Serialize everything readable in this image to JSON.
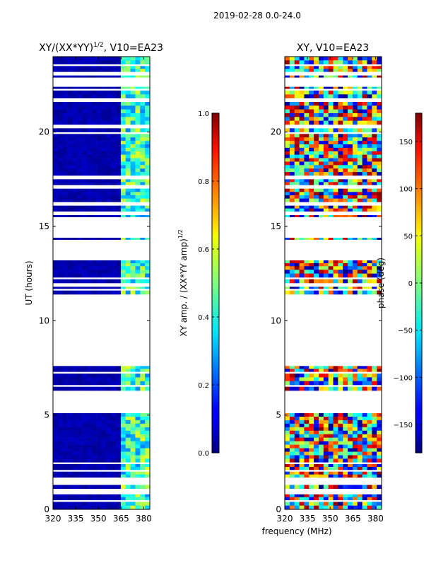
{
  "figure": {
    "suptitle": "2019-02-28 0.0-24.0",
    "xlabel": "frequency (MHz)"
  },
  "chart_data": [
    {
      "type": "heatmap",
      "title_main": "XY/(XX*YY)",
      "title_sup": "1/2",
      "title_tail": ", V10=EA23",
      "xlabel": "",
      "ylabel": "UT (hours)",
      "xlim": [
        320,
        384
      ],
      "ylim": [
        0,
        24
      ],
      "xticks": [
        320,
        335,
        350,
        365,
        380
      ],
      "xtick_labels": [
        "320",
        "335",
        "350",
        "365",
        "380"
      ],
      "yticks": [
        0,
        5,
        10,
        15,
        20
      ],
      "ytick_labels": [
        "0",
        "5",
        "10",
        "15",
        "20"
      ],
      "colorbar": {
        "label_main": "XY amp. / (XX*YY amp)",
        "label_sup": "1/2",
        "range": [
          0.0,
          1.0
        ],
        "ticks": [
          0.0,
          0.2,
          0.4,
          0.6,
          0.8,
          1.0
        ],
        "tick_labels": [
          "0.0",
          "0.2",
          "0.4",
          "0.6",
          "0.8",
          "1.0"
        ],
        "colormap": "jet"
      },
      "bright_channel_range_MHz": [
        363,
        382
      ],
      "data_time_ranges_hours": [
        [
          0,
          0.4
        ],
        [
          0.5,
          0.8
        ],
        [
          1.1,
          1.3
        ],
        [
          1.7,
          2.0
        ],
        [
          2.1,
          2.4
        ],
        [
          2.5,
          5.1
        ],
        [
          6.3,
          6.5
        ],
        [
          6.6,
          7.2
        ],
        [
          7.3,
          7.6
        ],
        [
          11.4,
          11.6
        ],
        [
          11.7,
          11.8
        ],
        [
          12.0,
          12.2
        ],
        [
          12.3,
          12.9
        ],
        [
          12.9,
          13.2
        ],
        [
          14.3,
          14.4
        ],
        [
          15.5,
          15.6
        ],
        [
          15.8,
          16.1
        ],
        [
          16.3,
          17.0
        ],
        [
          17.2,
          17.5
        ],
        [
          17.7,
          19.9
        ],
        [
          20.0,
          20.2
        ],
        [
          20.4,
          21.6
        ],
        [
          21.8,
          22.2
        ],
        [
          22.3,
          22.4
        ],
        [
          22.9,
          23.0
        ],
        [
          23.2,
          23.5
        ],
        [
          23.6,
          24.0
        ]
      ]
    },
    {
      "type": "heatmap",
      "title": "XY, V10=EA23",
      "xlabel": "",
      "ylabel": "",
      "xlim": [
        320,
        384
      ],
      "ylim": [
        0,
        24
      ],
      "xticks": [
        320,
        335,
        350,
        365,
        380
      ],
      "xtick_labels": [
        "320",
        "335",
        "350",
        "365",
        "380"
      ],
      "yticks": [
        0,
        5,
        10,
        15,
        20
      ],
      "ytick_labels": [
        "0",
        "5",
        "10",
        "15",
        "20"
      ],
      "colorbar": {
        "label": "phase (deg)",
        "range": [
          -180,
          180
        ],
        "ticks": [
          -150,
          -100,
          -50,
          0,
          50,
          100,
          150
        ],
        "tick_labels": [
          "−150",
          "−100",
          "−50",
          "0",
          "50",
          "100",
          "150"
        ],
        "colormap": "jet"
      },
      "data_time_ranges_hours": [
        [
          0,
          0.4
        ],
        [
          0.5,
          0.8
        ],
        [
          1.1,
          1.3
        ],
        [
          1.7,
          2.0
        ],
        [
          2.1,
          2.4
        ],
        [
          2.5,
          5.1
        ],
        [
          6.3,
          6.5
        ],
        [
          6.6,
          7.2
        ],
        [
          7.3,
          7.6
        ],
        [
          11.4,
          11.6
        ],
        [
          11.7,
          11.8
        ],
        [
          12.0,
          12.2
        ],
        [
          12.3,
          12.9
        ],
        [
          12.9,
          13.2
        ],
        [
          14.3,
          14.4
        ],
        [
          15.5,
          15.6
        ],
        [
          15.8,
          16.1
        ],
        [
          16.3,
          17.0
        ],
        [
          17.2,
          17.5
        ],
        [
          17.7,
          19.9
        ],
        [
          20.0,
          20.2
        ],
        [
          20.4,
          21.6
        ],
        [
          21.8,
          22.2
        ],
        [
          22.3,
          22.4
        ],
        [
          22.9,
          23.0
        ],
        [
          23.2,
          23.5
        ],
        [
          23.6,
          24.0
        ]
      ]
    }
  ]
}
